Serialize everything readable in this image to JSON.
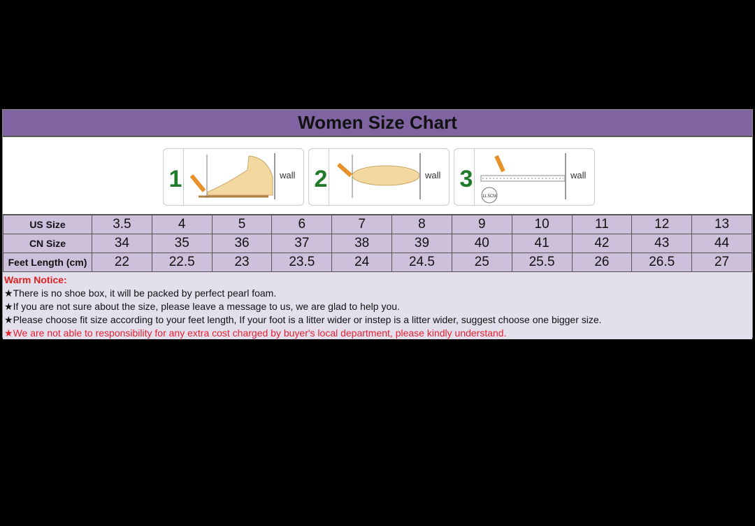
{
  "title": "Women Size Chart",
  "steps": [
    {
      "number": "1",
      "wall": "wall"
    },
    {
      "number": "2",
      "wall": "wall"
    },
    {
      "number": "3",
      "wall": "wall",
      "ruler_label": "11.5CM"
    }
  ],
  "table": {
    "rows": [
      {
        "label": "US Size",
        "values": [
          "3.5",
          "4",
          "5",
          "6",
          "7",
          "8",
          "9",
          "10",
          "11",
          "12",
          "13"
        ]
      },
      {
        "label": "CN Size",
        "values": [
          "34",
          "35",
          "36",
          "37",
          "38",
          "39",
          "40",
          "41",
          "42",
          "43",
          "44"
        ]
      },
      {
        "label": "Feet Length (cm)",
        "values": [
          "22",
          "22.5",
          "23",
          "23.5",
          "24",
          "24.5",
          "25",
          "25.5",
          "26",
          "26.5",
          "27"
        ]
      }
    ]
  },
  "notice": {
    "title": "Warm Notice:",
    "star": "★",
    "items": [
      "There is no shoe box, it will be packed by perfect pearl foam.",
      "If you are not sure about the size, please leave a message to us, we are glad to help you.",
      "Please choose fit size according to your feet length, If your foot is a litter wider or instep is a litter wider, suggest choose one bigger size.",
      "We are not able to responsibility for any extra cost charged by buyer's local department, please kindly understand."
    ]
  },
  "colors": {
    "header": "#8064a2",
    "table": "#ccc0da",
    "notice_bg": "#e4dfec",
    "warn": "#e82030"
  }
}
